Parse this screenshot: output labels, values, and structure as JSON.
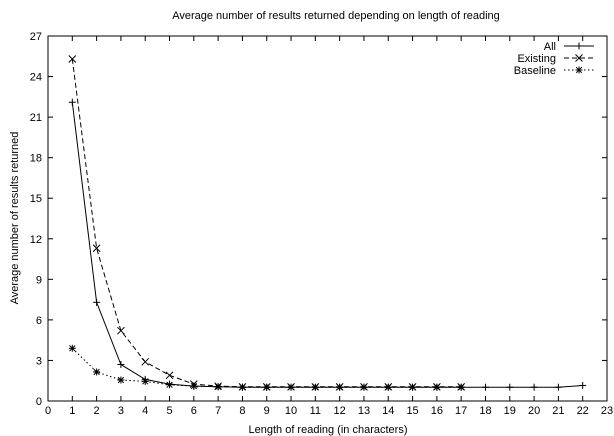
{
  "chart_data": {
    "type": "line",
    "title": "Average number of results returned depending on length of reading",
    "xlabel": "Length of reading (in characters)",
    "ylabel": "Average number of results returned",
    "xlim": [
      0,
      23
    ],
    "ylim": [
      0,
      27
    ],
    "xticks": [
      0,
      1,
      2,
      3,
      4,
      5,
      6,
      7,
      8,
      9,
      10,
      11,
      12,
      13,
      14,
      15,
      16,
      17,
      18,
      19,
      20,
      21,
      22,
      23
    ],
    "yticks": [
      0,
      3,
      6,
      9,
      12,
      15,
      18,
      21,
      24,
      27
    ],
    "grid": false,
    "legend_position": "top-right",
    "series": [
      {
        "name": "All",
        "style": "solid",
        "marker": "plus",
        "x": [
          1,
          2,
          3,
          4,
          5,
          6,
          7,
          8,
          9,
          10,
          11,
          12,
          13,
          14,
          15,
          16,
          17,
          18,
          19,
          20,
          21,
          22
        ],
        "y": [
          22.1,
          7.3,
          2.7,
          1.6,
          1.25,
          1.1,
          1.05,
          1.02,
          1.02,
          1.02,
          1.02,
          1.02,
          1.02,
          1.02,
          1.02,
          1.02,
          1.02,
          1.02,
          1.02,
          1.02,
          1.02,
          1.15
        ]
      },
      {
        "name": "Existing",
        "style": "dashed",
        "marker": "cross",
        "x": [
          1,
          2,
          3,
          4,
          5,
          6,
          7,
          8,
          9,
          10,
          11,
          12,
          13,
          14,
          15,
          16,
          17
        ],
        "y": [
          25.3,
          11.3,
          5.2,
          2.9,
          1.9,
          1.25,
          1.1,
          1.05,
          1.05,
          1.05,
          1.05,
          1.05,
          1.05,
          1.05,
          1.05,
          1.05,
          1.05
        ]
      },
      {
        "name": "Baseline",
        "style": "dotted",
        "marker": "star",
        "x": [
          1,
          2,
          3,
          4,
          5,
          6,
          7,
          8,
          9,
          10,
          11,
          12,
          13,
          14,
          15,
          16,
          17
        ],
        "y": [
          3.9,
          2.15,
          1.55,
          1.45,
          1.2,
          1.1,
          1.05,
          1.02,
          1.02,
          1.02,
          1.02,
          1.02,
          1.02,
          1.02,
          1.02,
          1.02,
          1.02
        ]
      }
    ]
  }
}
